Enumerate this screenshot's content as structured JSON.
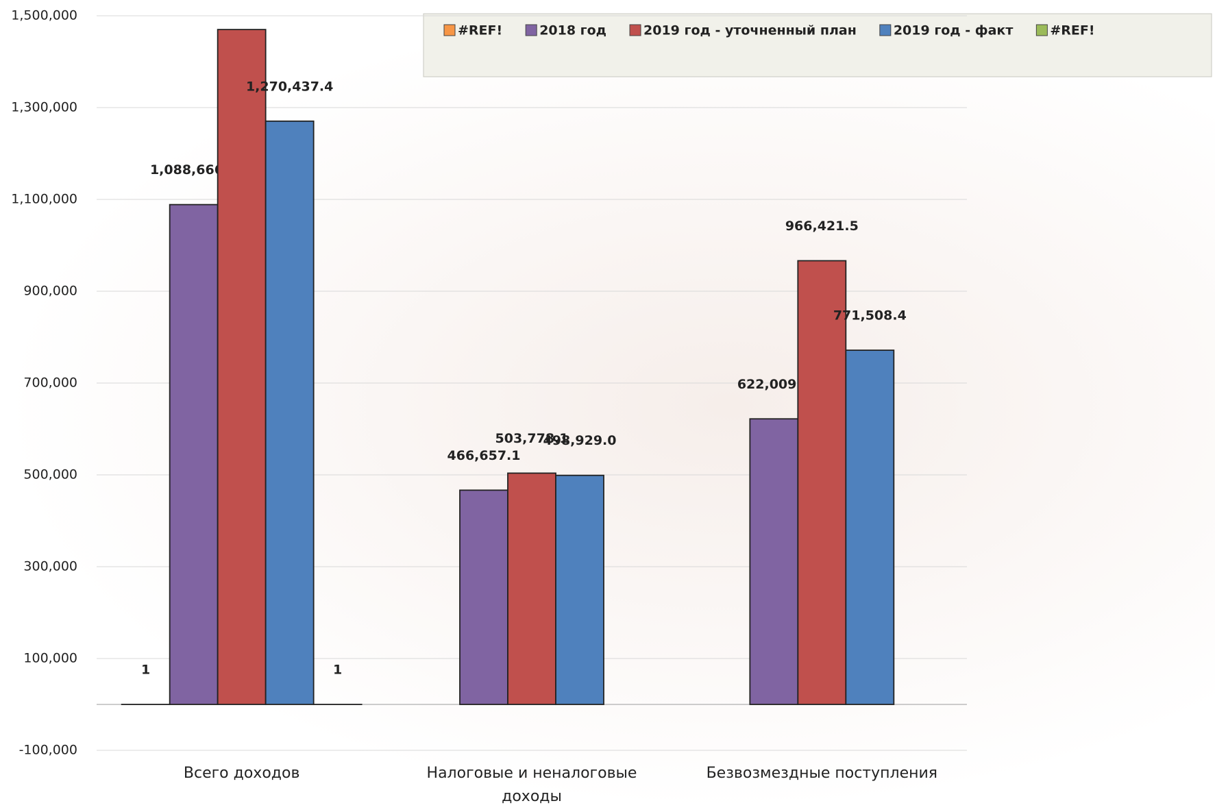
{
  "chart_data": {
    "type": "bar",
    "categories": [
      "Всего доходов",
      "Налоговые и неналоговые доходы",
      "Безвозмездные поступления"
    ],
    "series": [
      {
        "name": "#REF!",
        "color": "#f79646",
        "values": [
          1,
          null,
          null
        ]
      },
      {
        "name": "2018 год",
        "color": "#8064a2",
        "values": [
          1088666.4,
          466657.1,
          622009.3
        ],
        "value_labels": [
          "1,088,666.4",
          "466,657.1",
          "622,009.3"
        ]
      },
      {
        "name": "2019 год - уточненный план",
        "color": "#c0504d",
        "values": [
          1470000,
          503778.1,
          966421.5
        ],
        "value_labels": [
          null,
          "503,778.1",
          "966,421.5"
        ]
      },
      {
        "name": "2019 год - факт",
        "color": "#4f81bd",
        "values": [
          1270437.4,
          498929.0,
          771508.4
        ],
        "value_labels": [
          "1,270,437.4",
          "498,929.0",
          "771,508.4"
        ]
      },
      {
        "name": "#REF!",
        "color": "#9bbb59",
        "values": [
          1,
          null,
          null
        ]
      }
    ],
    "ylim": [
      -100000,
      1500000
    ],
    "yticks": [
      {
        "value": -100000,
        "label": "-100,000"
      },
      {
        "value": 100000,
        "label": "100,000"
      },
      {
        "value": 300000,
        "label": "300,000"
      },
      {
        "value": 500000,
        "label": "500,000"
      },
      {
        "value": 700000,
        "label": "700,000"
      },
      {
        "value": 900000,
        "label": "900,000"
      },
      {
        "value": 1100000,
        "label": "1,100,000"
      },
      {
        "value": 1300000,
        "label": "1,300,000"
      },
      {
        "value": 1500000,
        "label": "1,500,000"
      }
    ],
    "grid": true,
    "legend": "top-right"
  }
}
